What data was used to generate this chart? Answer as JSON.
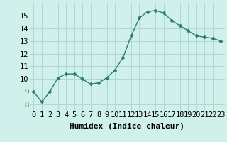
{
  "x": [
    0,
    1,
    2,
    3,
    4,
    5,
    6,
    7,
    8,
    9,
    10,
    11,
    12,
    13,
    14,
    15,
    16,
    17,
    18,
    19,
    20,
    21,
    22,
    23
  ],
  "y": [
    9.0,
    8.2,
    9.0,
    10.1,
    10.4,
    10.4,
    10.0,
    9.6,
    9.7,
    10.1,
    10.7,
    11.7,
    13.4,
    14.8,
    15.3,
    15.4,
    15.2,
    14.6,
    14.2,
    13.8,
    13.4,
    13.3,
    13.2,
    13.0
  ],
  "line_color": "#2d7d6e",
  "marker": "D",
  "marker_size": 2.5,
  "bg_color": "#cff0eb",
  "grid_color": "#aed8d2",
  "xlabel": "Humidex (Indice chaleur)",
  "xlim": [
    -0.5,
    23.5
  ],
  "ylim": [
    7.5,
    16.0
  ],
  "yticks": [
    8,
    9,
    10,
    11,
    12,
    13,
    14,
    15
  ],
  "xtick_labels": [
    "0",
    "1",
    "2",
    "3",
    "4",
    "5",
    "6",
    "7",
    "8",
    "9",
    "10",
    "11",
    "12",
    "13",
    "14",
    "15",
    "16",
    "17",
    "18",
    "19",
    "20",
    "21",
    "22",
    "23"
  ],
  "xlabel_fontsize": 8,
  "tick_fontsize": 7.5
}
